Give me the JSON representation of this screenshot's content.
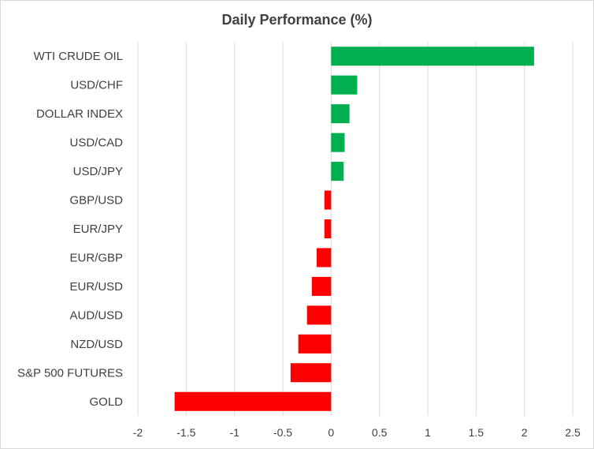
{
  "chart_data": {
    "type": "bar",
    "orientation": "horizontal",
    "title": "Daily Performance (%)",
    "xlabel": "",
    "ylabel": "",
    "categories": [
      "WTI CRUDE OIL",
      "USD/CHF",
      "DOLLAR INDEX",
      "USD/CAD",
      "USD/JPY",
      "GBP/USD",
      "EUR/JPY",
      "EUR/GBP",
      "EUR/USD",
      "AUD/USD",
      "NZD/USD",
      "S&P 500 FUTURES",
      "GOLD"
    ],
    "values": [
      2.1,
      0.27,
      0.19,
      0.14,
      0.13,
      -0.07,
      -0.07,
      -0.15,
      -0.2,
      -0.25,
      -0.34,
      -0.42,
      -1.62
    ],
    "xlim": [
      -2,
      2.5
    ],
    "x_ticks": [
      -2,
      -1.5,
      -1,
      -0.5,
      0,
      0.5,
      1,
      1.5,
      2,
      2.5
    ],
    "x_tick_labels": [
      "-2",
      "-1.5",
      "-1",
      "-0.5",
      "0",
      "0.5",
      "1",
      "1.5",
      "2",
      "2.5"
    ],
    "grid": true,
    "colors": {
      "positive": "#00b050",
      "negative": "#ff0000",
      "grid": "#d9d9d9",
      "text": "#404040"
    }
  }
}
